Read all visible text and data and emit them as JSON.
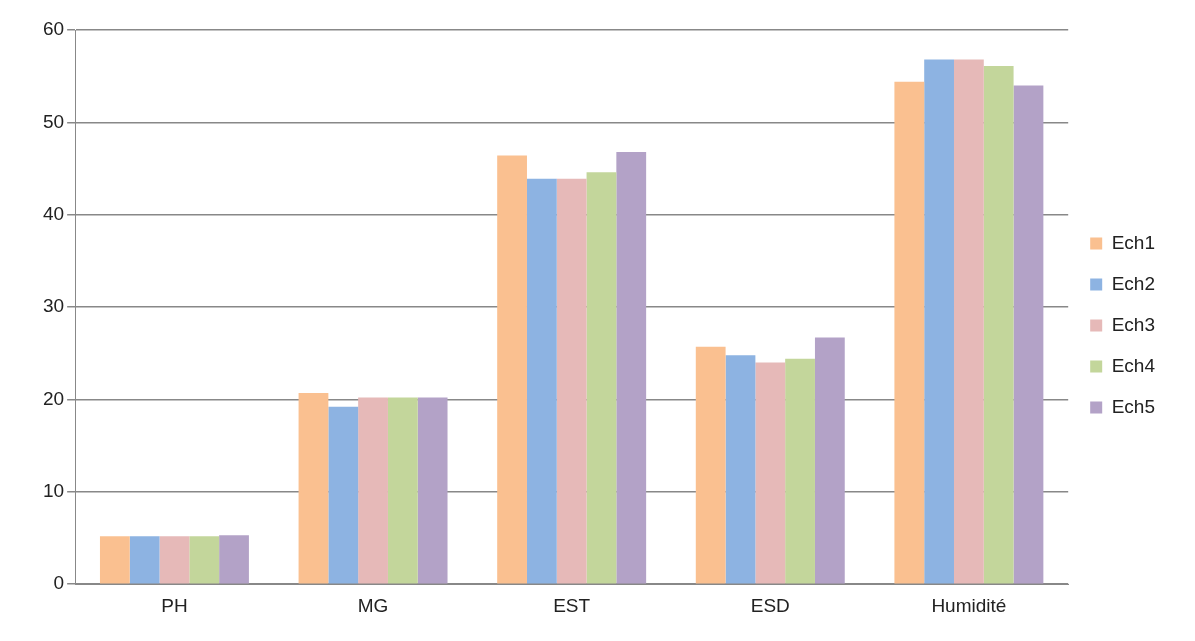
{
  "chart_data": {
    "type": "bar",
    "categories": [
      "PH",
      "MG",
      "EST",
      "ESD",
      "Humidité"
    ],
    "series": [
      {
        "name": "Ech1",
        "color": "#fac090",
        "values": [
          5.2,
          20.7,
          46.4,
          25.7,
          54.4
        ]
      },
      {
        "name": "Ech2",
        "color": "#8db3e2",
        "values": [
          5.2,
          19.2,
          43.9,
          24.8,
          56.8
        ]
      },
      {
        "name": "Ech3",
        "color": "#e6b9b8",
        "values": [
          5.2,
          20.2,
          43.9,
          24.0,
          56.8
        ]
      },
      {
        "name": "Ech4",
        "color": "#c3d69b",
        "values": [
          5.2,
          20.2,
          44.6,
          24.4,
          56.1
        ]
      },
      {
        "name": "Ech5",
        "color": "#b3a2c7",
        "values": [
          5.3,
          20.2,
          46.8,
          26.7,
          54.0
        ]
      }
    ],
    "ylim": [
      0,
      60
    ],
    "yticks": [
      0,
      10,
      20,
      30,
      40,
      50,
      60
    ],
    "grid": "y",
    "legend": "right"
  }
}
